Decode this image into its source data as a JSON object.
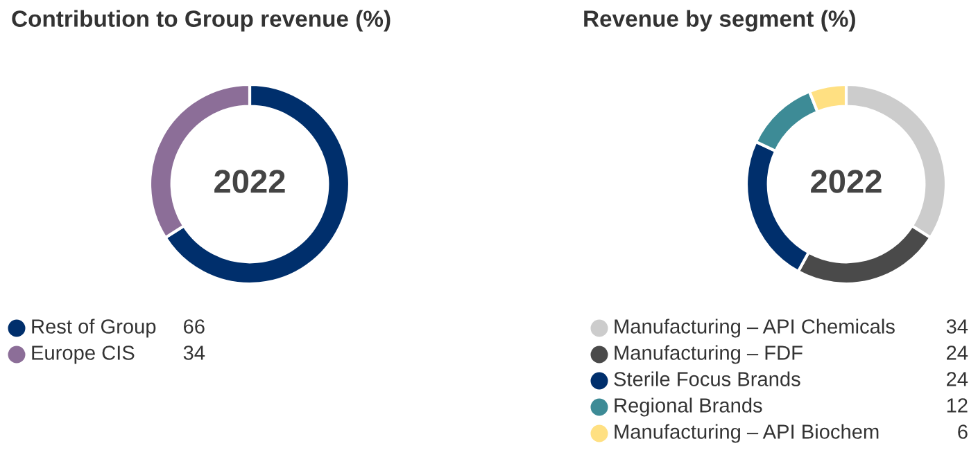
{
  "chart_data": [
    {
      "type": "donut",
      "title": "Contribution to Group revenue (%)",
      "categories": [
        "Rest of Group",
        "Europe CIS"
      ],
      "values": [
        66,
        34
      ],
      "colors": [
        "#002f6c",
        "#8c6e98"
      ],
      "annotations": [
        "2022"
      ],
      "data_labels": true,
      "legend": "bottom left"
    },
    {
      "type": "donut",
      "title": "Revenue by segment (%)",
      "categories": [
        "Manufacturing – API Chemicals",
        "Manufacturing – FDF",
        "Sterile Focus Brands",
        "Regional Brands",
        "Manufacturing – API Biochem"
      ],
      "values": [
        34,
        24,
        24,
        12,
        6
      ],
      "colors": [
        "#cccccc",
        "#4a4a4a",
        "#002f6c",
        "#3d8b96",
        "#ffe082"
      ],
      "annotations": [
        "2022"
      ],
      "data_labels": true,
      "legend": "bottom left"
    }
  ]
}
